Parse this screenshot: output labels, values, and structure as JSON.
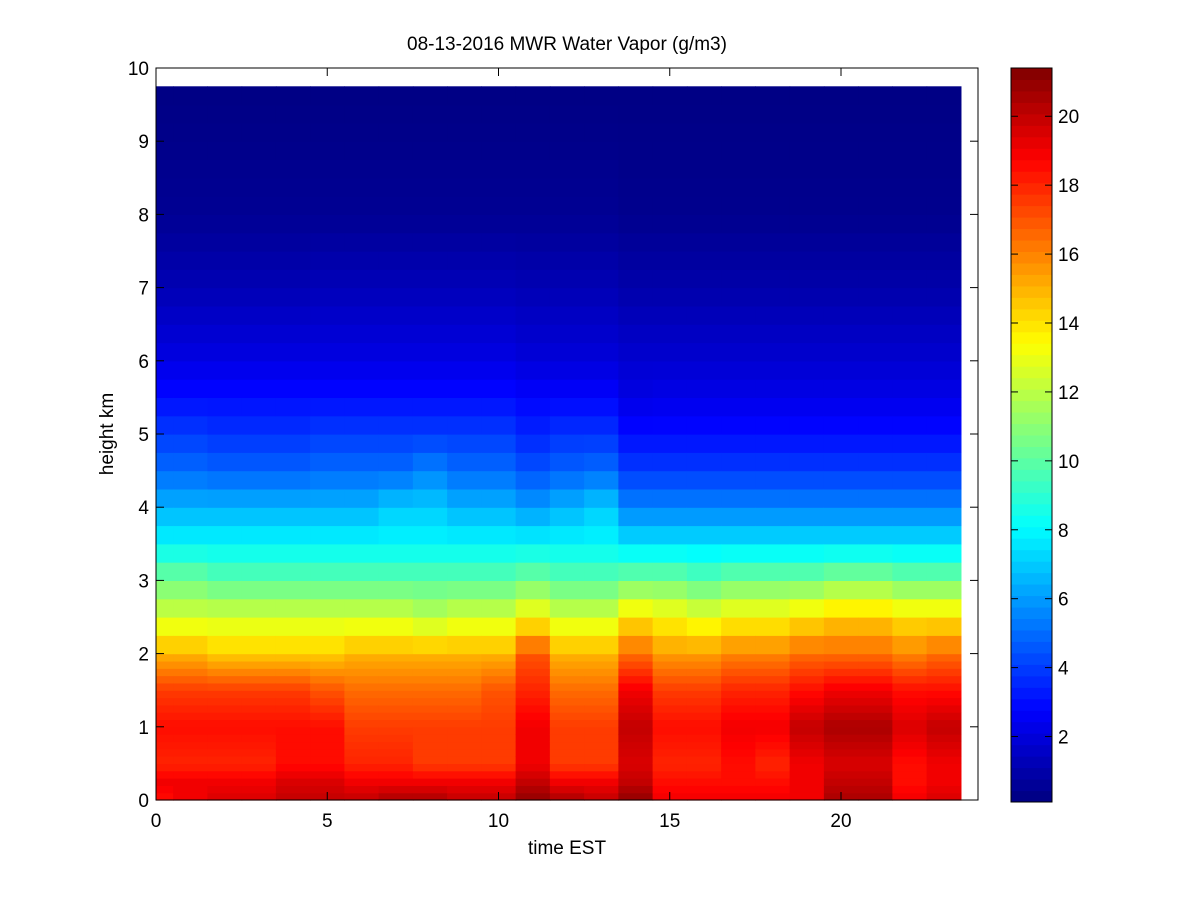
{
  "chart_data": {
    "type": "heatmap",
    "title": "08-13-2016 MWR Water Vapor (g/m3)",
    "xlabel": "time EST",
    "ylabel": "height km",
    "xlim": [
      0,
      24
    ],
    "ylim": [
      0,
      10
    ],
    "xticks": [
      0,
      5,
      10,
      15,
      20
    ],
    "yticks": [
      0,
      1,
      2,
      3,
      4,
      5,
      6,
      7,
      8,
      9,
      10
    ],
    "colormap": "jet",
    "clim": [
      0.1,
      21.4
    ],
    "colorbar_ticks": [
      2,
      4,
      6,
      8,
      10,
      12,
      14,
      16,
      18,
      20
    ],
    "grid": false,
    "time_hours": [
      0,
      1,
      2,
      3,
      4,
      5,
      6,
      7,
      8,
      9,
      10,
      11,
      12,
      13,
      14,
      15,
      16,
      17,
      18,
      19,
      20,
      21,
      22,
      23
    ],
    "time_end": 23.5,
    "height_km": [
      0,
      0.1,
      0.2,
      0.3,
      0.4,
      0.5,
      0.6,
      0.7,
      0.8,
      0.9,
      1.0,
      1.1,
      1.2,
      1.3,
      1.4,
      1.5,
      1.6,
      1.7,
      1.8,
      1.9,
      2.0,
      2.25,
      2.5,
      2.75,
      3.0,
      3.25,
      3.5,
      3.75,
      4.0,
      4.25,
      4.5,
      4.75,
      5.0,
      5.25,
      5.5,
      5.75,
      6.0,
      6.25,
      6.5,
      6.75,
      7.0,
      7.25,
      7.5,
      7.75,
      8.0,
      8.25,
      8.5,
      8.75,
      9.0,
      9.25,
      9.5
    ],
    "height_top": 9.75,
    "profiles": {
      "heights_km": [
        0,
        0.25,
        0.5,
        1.0,
        1.5,
        2.0,
        2.5,
        3.0,
        3.5,
        4.0,
        4.5,
        5.0,
        5.5,
        6.0,
        7.0,
        8.0,
        9.75
      ],
      "values": [
        [
          18.5,
          19.0,
          18.0,
          18.5,
          17.5,
          15.0,
          12.5,
          10.5,
          8.0,
          6.5,
          5.0,
          4.0,
          3.0,
          2.2,
          1.2,
          0.5,
          0.2
        ],
        [
          19.0,
          19.0,
          18.0,
          18.5,
          17.5,
          15.0,
          12.5,
          10.5,
          8.0,
          6.5,
          5.0,
          4.0,
          3.0,
          2.2,
          1.2,
          0.5,
          0.2
        ],
        [
          19.5,
          19.0,
          18.0,
          18.5,
          17.5,
          14.5,
          12.5,
          10.0,
          8.0,
          6.5,
          4.8,
          3.8,
          3.0,
          2.2,
          1.2,
          0.5,
          0.2
        ],
        [
          19.5,
          19.0,
          18.0,
          18.5,
          17.5,
          14.5,
          12.5,
          10.0,
          8.0,
          6.5,
          4.8,
          3.8,
          3.0,
          2.2,
          1.2,
          0.5,
          0.2
        ],
        [
          20.0,
          19.5,
          18.5,
          18.5,
          17.5,
          14.5,
          12.5,
          10.0,
          8.0,
          6.5,
          4.8,
          3.8,
          3.0,
          2.2,
          1.2,
          0.5,
          0.2
        ],
        [
          20.0,
          19.5,
          18.5,
          18.5,
          17.0,
          14.5,
          12.5,
          10.0,
          8.0,
          6.5,
          5.0,
          4.0,
          3.0,
          2.2,
          1.3,
          0.5,
          0.2
        ],
        [
          20.0,
          19.0,
          18.0,
          17.5,
          16.5,
          15.0,
          12.5,
          10.0,
          8.0,
          6.5,
          5.0,
          4.0,
          3.0,
          2.2,
          1.3,
          0.5,
          0.2
        ],
        [
          20.5,
          19.0,
          18.0,
          17.5,
          16.5,
          15.0,
          12.5,
          10.0,
          8.0,
          7.0,
          5.0,
          4.0,
          3.0,
          2.2,
          1.3,
          0.5,
          0.2
        ],
        [
          20.5,
          19.0,
          17.5,
          17.5,
          16.5,
          15.0,
          12.0,
          10.0,
          8.0,
          7.0,
          5.5,
          4.0,
          3.0,
          2.2,
          1.3,
          0.5,
          0.2
        ],
        [
          20.0,
          19.0,
          17.5,
          17.5,
          16.5,
          15.0,
          12.5,
          10.0,
          8.0,
          6.5,
          5.0,
          4.0,
          3.0,
          2.2,
          1.3,
          0.5,
          0.2
        ],
        [
          20.0,
          19.0,
          17.5,
          17.5,
          17.0,
          15.0,
          12.5,
          10.0,
          8.0,
          6.5,
          5.0,
          4.0,
          3.0,
          2.2,
          1.3,
          0.5,
          0.2
        ],
        [
          21.0,
          20.0,
          19.0,
          19.0,
          18.0,
          17.0,
          13.5,
          10.5,
          8.0,
          6.0,
          4.5,
          3.5,
          2.8,
          2.0,
          1.2,
          0.5,
          0.2
        ],
        [
          20.5,
          19.0,
          17.5,
          17.5,
          16.5,
          15.0,
          12.5,
          10.0,
          8.0,
          6.5,
          4.8,
          3.8,
          2.8,
          2.0,
          1.2,
          0.5,
          0.2
        ],
        [
          20.0,
          19.0,
          17.5,
          17.5,
          16.5,
          15.0,
          12.5,
          10.0,
          8.0,
          7.0,
          5.0,
          3.8,
          2.8,
          2.0,
          1.2,
          0.5,
          0.2
        ],
        [
          21.0,
          20.0,
          19.5,
          20.0,
          19.0,
          16.5,
          14.0,
          10.5,
          7.5,
          5.5,
          4.0,
          3.0,
          2.2,
          1.8,
          1.0,
          0.4,
          0.2
        ],
        [
          19.0,
          18.5,
          18.0,
          18.5,
          17.5,
          15.5,
          13.5,
          10.5,
          7.5,
          5.5,
          4.0,
          3.0,
          2.3,
          1.8,
          1.0,
          0.4,
          0.2
        ],
        [
          19.0,
          18.5,
          18.0,
          18.5,
          17.5,
          15.5,
          13.0,
          10.0,
          7.5,
          5.5,
          4.0,
          3.0,
          2.3,
          1.8,
          1.0,
          0.4,
          0.2
        ],
        [
          19.0,
          18.5,
          18.5,
          19.0,
          18.0,
          16.0,
          13.5,
          10.5,
          7.5,
          5.5,
          4.0,
          3.0,
          2.3,
          1.8,
          1.0,
          0.4,
          0.2
        ],
        [
          19.0,
          18.5,
          18.0,
          19.0,
          18.0,
          16.0,
          13.5,
          10.5,
          7.5,
          5.5,
          4.0,
          3.0,
          2.3,
          1.8,
          1.0,
          0.4,
          0.2
        ],
        [
          19.0,
          19.0,
          19.0,
          20.0,
          18.5,
          16.5,
          14.0,
          10.5,
          7.5,
          5.5,
          4.0,
          3.0,
          2.3,
          1.8,
          1.0,
          0.4,
          0.2
        ],
        [
          20.5,
          20.0,
          19.5,
          20.5,
          19.0,
          16.5,
          14.5,
          11.0,
          7.5,
          5.5,
          4.0,
          3.0,
          2.3,
          1.8,
          1.0,
          0.4,
          0.2
        ],
        [
          20.5,
          20.0,
          19.5,
          20.5,
          19.0,
          16.5,
          14.5,
          11.0,
          7.5,
          5.5,
          4.0,
          3.0,
          2.3,
          1.8,
          1.0,
          0.4,
          0.2
        ],
        [
          19.0,
          18.5,
          18.5,
          19.5,
          18.5,
          16.0,
          14.0,
          10.5,
          7.5,
          5.5,
          4.0,
          3.0,
          2.3,
          1.8,
          1.0,
          0.4,
          0.2
        ],
        [
          19.5,
          19.0,
          19.0,
          20.0,
          18.5,
          16.5,
          14.0,
          10.5,
          7.5,
          5.5,
          4.0,
          3.0,
          2.3,
          1.8,
          1.0,
          0.4,
          0.2
        ]
      ]
    }
  }
}
